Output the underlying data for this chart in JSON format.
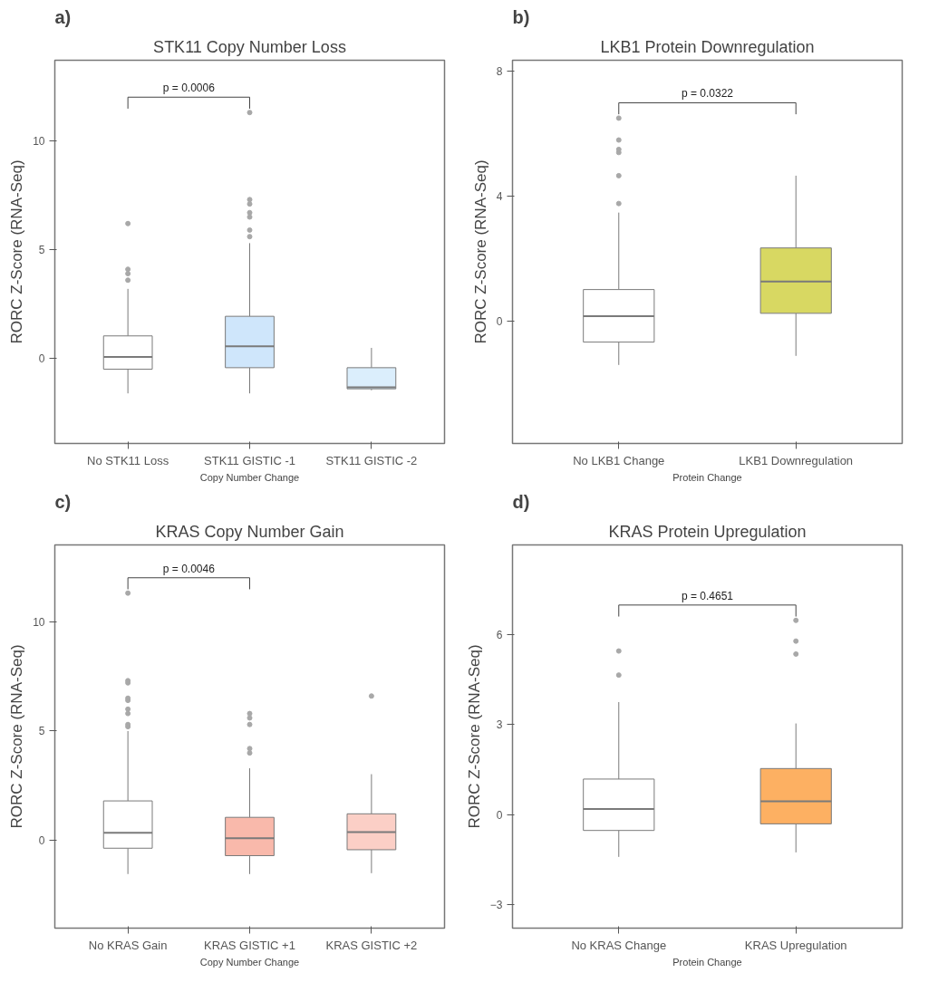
{
  "chart_data": [
    {
      "type": "box",
      "title": "STK11 Copy Number Loss",
      "xlabel": "Copy Number Change",
      "ylabel": "RORC Z-Score (RNA-Seq)",
      "categories": [
        "No STK11 Loss",
        "STK11 GISTIC -1",
        "STK11 GISTIC -2"
      ],
      "colors": [
        "#ffffff",
        "#cfe6fb",
        "#dbeefc"
      ],
      "boxes": [
        {
          "low": -1.6,
          "q1": -0.49,
          "median": 0.07,
          "q3": 1.04,
          "high": 3.2,
          "outliers": [
            3.6,
            3.9,
            4.1,
            6.2
          ]
        },
        {
          "low": -1.6,
          "q1": -0.42,
          "median": 0.56,
          "q3": 1.94,
          "high": 5.3,
          "outliers": [
            5.6,
            5.9,
            6.5,
            6.7,
            7.1,
            7.3,
            11.3
          ]
        },
        {
          "low": -1.46,
          "q1": -1.39,
          "median": -1.32,
          "q3": -0.42,
          "high": 0.49
        }
      ],
      "ylim": [
        -3.9,
        13.7
      ],
      "yticks": [
        0,
        5,
        10
      ],
      "annotations": [
        "a)",
        "p = 0.0006"
      ]
    },
    {
      "type": "box",
      "title": "LKB1 Protein Downregulation",
      "xlabel": "Protein Change",
      "ylabel": "RORC Z-Score (RNA-Seq)",
      "categories": [
        "No LKB1 Change",
        "LKB1 Downregulation"
      ],
      "colors": [
        "#ffffff",
        "#d8d862"
      ],
      "boxes": [
        {
          "low": -1.39,
          "q1": -0.66,
          "median": 0.17,
          "q3": 1.02,
          "high": 3.48,
          "outliers": [
            3.77,
            4.66,
            5.4,
            5.5,
            5.8,
            6.5
          ]
        },
        {
          "low": -1.1,
          "q1": 0.26,
          "median": 1.28,
          "q3": 2.35,
          "high": 4.66
        }
      ],
      "ylim": [
        -3.9,
        8.35
      ],
      "yticks": [
        0,
        4,
        8
      ],
      "annotations": [
        "b)",
        "p = 0.0322"
      ]
    },
    {
      "type": "box",
      "title": "KRAS Copy Number Gain",
      "xlabel": "Copy Number Change",
      "ylabel": "RORC Z-Score (RNA-Seq)",
      "categories": [
        "No KRAS Gain",
        "KRAS GISTIC +1",
        "KRAS GISTIC +2"
      ],
      "colors": [
        "#ffffff",
        "#f9b9ab",
        "#fbcfc6"
      ],
      "boxes": [
        {
          "low": -1.53,
          "q1": -0.35,
          "median": 0.35,
          "q3": 1.81,
          "high": 5.0,
          "outliers": [
            5.2,
            5.3,
            5.8,
            6.0,
            6.4,
            6.5,
            7.2,
            7.3,
            11.3
          ]
        },
        {
          "low": -1.53,
          "q1": -0.69,
          "median": 0.11,
          "q3": 1.06,
          "high": 3.3,
          "outliers": [
            4.0,
            4.2,
            5.3,
            5.6,
            5.8
          ]
        },
        {
          "low": -1.49,
          "q1": -0.42,
          "median": 0.39,
          "q3": 1.22,
          "high": 3.03,
          "outliers": [
            6.6
          ]
        }
      ],
      "ylim": [
        -4.0,
        13.5
      ],
      "yticks": [
        0,
        5,
        10
      ],
      "annotations": [
        "c)",
        "p = 0.0046"
      ]
    },
    {
      "type": "box",
      "title": "KRAS Protein Upregulation",
      "xlabel": "Protein Change",
      "ylabel": "RORC Z-Score (RNA-Seq)",
      "categories": [
        "No KRAS Change",
        "KRAS Upregulation"
      ],
      "colors": [
        "#ffffff",
        "#fdb062"
      ],
      "boxes": [
        {
          "low": -1.4,
          "q1": -0.52,
          "median": 0.19,
          "q3": 1.19,
          "high": 3.75,
          "outliers": [
            4.65,
            5.45
          ]
        },
        {
          "low": -1.25,
          "q1": -0.3,
          "median": 0.45,
          "q3": 1.54,
          "high": 3.04,
          "outliers": [
            5.35,
            5.78,
            6.47
          ]
        }
      ],
      "ylim": [
        -3.77,
        8.98
      ],
      "yticks": [
        -3,
        0,
        3,
        6
      ],
      "annotations": [
        "d)",
        "p = 0.4651"
      ]
    }
  ]
}
